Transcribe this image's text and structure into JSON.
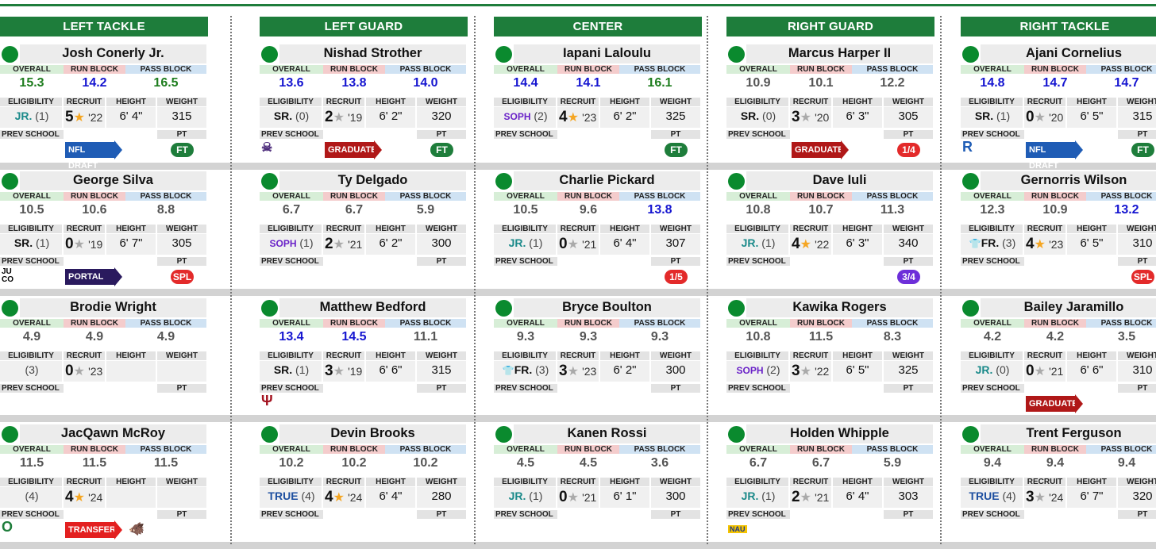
{
  "labels": {
    "overall": "OVERALL",
    "run_block": "RUN BLOCK",
    "pass_block": "PASS BLOCK",
    "eligibility": "ELIGIBILITY",
    "recruit": "RECRUIT",
    "height": "HEIGHT",
    "weight": "WEIGHT",
    "prev_school": "PREV SCHOOL",
    "pt": "PT"
  },
  "colors": {
    "header_green": "#1e7d3b",
    "stat_green": "#1e7d1e",
    "stat_blue": "#1515d0",
    "stat_gray": "#555555"
  },
  "columns": [
    {
      "position": "LEFT TACKLE",
      "players": [
        {
          "name": "Josh Conerly Jr.",
          "overall": "15.3",
          "run_block": "14.2",
          "pass_block": "16.5",
          "colors": [
            "green",
            "blue",
            "green"
          ],
          "class": "JR.",
          "years": "(1)",
          "stars": "5",
          "star_color": "gold",
          "recruit_year": "'22",
          "height": "6' 4\"",
          "weight": "315",
          "prev_school": "",
          "status": "NFL DRAFT",
          "status_type": "draft",
          "pt": "FT",
          "pt_type": "ft"
        },
        {
          "name": "George Silva",
          "overall": "10.5",
          "run_block": "10.6",
          "pass_block": "8.8",
          "colors": [
            "gray",
            "gray",
            "gray"
          ],
          "class": "SR.",
          "years": "(1)",
          "stars": "0",
          "star_color": "gray",
          "recruit_year": "'19",
          "height": "6' 7\"",
          "weight": "305",
          "prev_school": "JU CO",
          "status": "PORTAL",
          "status_type": "portal",
          "pt": "SPL",
          "pt_type": "red"
        },
        {
          "name": "Brodie Wright",
          "overall": "4.9",
          "run_block": "4.9",
          "pass_block": "4.9",
          "colors": [
            "gray",
            "gray",
            "gray"
          ],
          "class": "",
          "years": "(3)",
          "stars": "0",
          "star_color": "gray",
          "recruit_year": "'23",
          "height": "",
          "weight": "",
          "prev_school": "",
          "status": "",
          "status_type": "",
          "pt": "",
          "pt_type": ""
        },
        {
          "name": "JacQawn McRoy",
          "overall": "11.5",
          "run_block": "11.5",
          "pass_block": "11.5",
          "colors": [
            "gray",
            "gray",
            "gray"
          ],
          "class": "",
          "years": "(4)",
          "stars": "4",
          "star_color": "gold",
          "recruit_year": "'24",
          "height": "",
          "weight": "",
          "prev_school": "O",
          "status": "TRANSFER",
          "status_type": "transfer",
          "pt": "",
          "pt_type": ""
        }
      ]
    },
    {
      "position": "LEFT GUARD",
      "players": [
        {
          "name": "Nishad Strother",
          "overall": "13.6",
          "run_block": "13.8",
          "pass_block": "14.0",
          "colors": [
            "blue",
            "blue",
            "blue"
          ],
          "class": "SR.",
          "years": "(0)",
          "stars": "2",
          "star_color": "gray",
          "recruit_year": "'19",
          "height": "6' 2\"",
          "weight": "320",
          "prev_school": "☠",
          "status": "GRADUATE",
          "status_type": "grad",
          "pt": "FT",
          "pt_type": "ft"
        },
        {
          "name": "Ty Delgado",
          "overall": "6.7",
          "run_block": "6.7",
          "pass_block": "5.9",
          "colors": [
            "gray",
            "gray",
            "gray"
          ],
          "class": "SOPH",
          "years": "(1)",
          "stars": "2",
          "star_color": "gray",
          "recruit_year": "'21",
          "height": "6' 2\"",
          "weight": "300",
          "prev_school": "",
          "status": "",
          "status_type": "",
          "pt": "",
          "pt_type": ""
        },
        {
          "name": "Matthew Bedford",
          "overall": "13.4",
          "run_block": "14.5",
          "pass_block": "11.1",
          "colors": [
            "blue",
            "blue",
            "gray"
          ],
          "class": "SR.",
          "years": "(1)",
          "stars": "3",
          "star_color": "gray",
          "recruit_year": "'19",
          "height": "6' 6\"",
          "weight": "315",
          "prev_school": "Ψ",
          "status": "",
          "status_type": "",
          "pt": "",
          "pt_type": ""
        },
        {
          "name": "Devin Brooks",
          "overall": "10.2",
          "run_block": "10.2",
          "pass_block": "10.2",
          "colors": [
            "gray",
            "gray",
            "gray"
          ],
          "class": "TRUE",
          "years": "(4)",
          "stars": "4",
          "star_color": "gold",
          "recruit_year": "'24",
          "height": "6' 4\"",
          "weight": "280",
          "prev_school": "",
          "status": "",
          "status_type": "",
          "pt": "",
          "pt_type": ""
        }
      ]
    },
    {
      "position": "CENTER",
      "players": [
        {
          "name": "Iapani Laloulu",
          "overall": "14.4",
          "run_block": "14.1",
          "pass_block": "16.1",
          "colors": [
            "blue",
            "blue",
            "green"
          ],
          "class": "SOPH",
          "years": "(2)",
          "stars": "4",
          "star_color": "gold",
          "recruit_year": "'23",
          "height": "6' 2\"",
          "weight": "325",
          "prev_school": "",
          "status": "",
          "status_type": "",
          "pt": "FT",
          "pt_type": "ft"
        },
        {
          "name": "Charlie Pickard",
          "overall": "10.5",
          "run_block": "9.6",
          "pass_block": "13.8",
          "colors": [
            "gray",
            "gray",
            "blue"
          ],
          "class": "JR.",
          "years": "(1)",
          "stars": "0",
          "star_color": "gray",
          "recruit_year": "'21",
          "height": "6' 4\"",
          "weight": "307",
          "prev_school": "",
          "status": "",
          "status_type": "",
          "pt": "1/5",
          "pt_type": "red"
        },
        {
          "name": "Bryce Boulton",
          "overall": "9.3",
          "run_block": "9.3",
          "pass_block": "9.3",
          "colors": [
            "gray",
            "gray",
            "gray"
          ],
          "class": "FR.",
          "redshirt": true,
          "years": "(3)",
          "stars": "3",
          "star_color": "gray",
          "recruit_year": "'23",
          "height": "6' 2\"",
          "weight": "300",
          "prev_school": "",
          "status": "",
          "status_type": "",
          "pt": "",
          "pt_type": ""
        },
        {
          "name": "Kanen Rossi",
          "overall": "4.5",
          "run_block": "4.5",
          "pass_block": "3.6",
          "colors": [
            "gray",
            "gray",
            "gray"
          ],
          "class": "JR.",
          "years": "(1)",
          "stars": "0",
          "star_color": "gray",
          "recruit_year": "'21",
          "height": "6' 1\"",
          "weight": "300",
          "prev_school": "",
          "status": "",
          "status_type": "",
          "pt": "",
          "pt_type": ""
        }
      ]
    },
    {
      "position": "RIGHT GUARD",
      "players": [
        {
          "name": "Marcus Harper II",
          "overall": "10.9",
          "run_block": "10.1",
          "pass_block": "12.2",
          "colors": [
            "gray",
            "gray",
            "gray"
          ],
          "class": "SR.",
          "years": "(0)",
          "stars": "3",
          "star_color": "gray",
          "recruit_year": "'20",
          "height": "6' 3\"",
          "weight": "305",
          "prev_school": "",
          "status": "GRADUATE",
          "status_type": "grad",
          "pt": "1/4",
          "pt_type": "red"
        },
        {
          "name": "Dave Iuli",
          "overall": "10.8",
          "run_block": "10.7",
          "pass_block": "11.3",
          "colors": [
            "gray",
            "gray",
            "gray"
          ],
          "class": "JR.",
          "years": "(1)",
          "stars": "4",
          "star_color": "gold",
          "recruit_year": "'22",
          "height": "6' 3\"",
          "weight": "340",
          "prev_school": "",
          "status": "",
          "status_type": "",
          "pt": "3/4",
          "pt_type": "purple"
        },
        {
          "name": "Kawika Rogers",
          "overall": "10.8",
          "run_block": "11.5",
          "pass_block": "8.3",
          "colors": [
            "gray",
            "gray",
            "gray"
          ],
          "class": "SOPH",
          "years": "(2)",
          "stars": "3",
          "star_color": "gray",
          "recruit_year": "'22",
          "height": "6' 5\"",
          "weight": "325",
          "prev_school": "",
          "status": "",
          "status_type": "",
          "pt": "",
          "pt_type": ""
        },
        {
          "name": "Holden Whipple",
          "overall": "6.7",
          "run_block": "6.7",
          "pass_block": "5.9",
          "colors": [
            "gray",
            "gray",
            "gray"
          ],
          "class": "JR.",
          "years": "(1)",
          "stars": "2",
          "star_color": "gray",
          "recruit_year": "'21",
          "height": "6' 4\"",
          "weight": "303",
          "prev_school": "NAU",
          "status": "",
          "status_type": "",
          "pt": "",
          "pt_type": ""
        }
      ]
    },
    {
      "position": "RIGHT TACKLE",
      "players": [
        {
          "name": "Ajani Cornelius",
          "overall": "14.8",
          "run_block": "14.7",
          "pass_block": "14.7",
          "colors": [
            "blue",
            "blue",
            "blue"
          ],
          "class": "SR.",
          "years": "(1)",
          "stars": "0",
          "star_color": "gray",
          "recruit_year": "'20",
          "height": "6' 5\"",
          "weight": "315",
          "prev_school": "R",
          "status": "NFL DRAFT",
          "status_type": "draft",
          "pt": "FT",
          "pt_type": "ft"
        },
        {
          "name": "Gernorris Wilson",
          "overall": "12.3",
          "run_block": "10.9",
          "pass_block": "13.2",
          "colors": [
            "gray",
            "gray",
            "blue"
          ],
          "class": "FR.",
          "redshirt": true,
          "years": "(3)",
          "stars": "4",
          "star_color": "gold",
          "recruit_year": "'23",
          "height": "6' 5\"",
          "weight": "310",
          "prev_school": "",
          "status": "",
          "status_type": "",
          "pt": "SPL",
          "pt_type": "red"
        },
        {
          "name": "Bailey Jaramillo",
          "overall": "4.2",
          "run_block": "4.2",
          "pass_block": "3.5",
          "colors": [
            "gray",
            "gray",
            "gray"
          ],
          "class": "JR.",
          "years": "(0)",
          "stars": "0",
          "star_color": "gray",
          "recruit_year": "'21",
          "height": "6' 6\"",
          "weight": "310",
          "prev_school": "",
          "status": "GRADUATE",
          "status_type": "grad",
          "pt": "",
          "pt_type": ""
        },
        {
          "name": "Trent Ferguson",
          "overall": "9.4",
          "run_block": "9.4",
          "pass_block": "9.4",
          "colors": [
            "gray",
            "gray",
            "gray"
          ],
          "class": "TRUE",
          "years": "(4)",
          "stars": "3",
          "star_color": "gray",
          "recruit_year": "'24",
          "height": "6' 7\"",
          "weight": "320",
          "prev_school": "",
          "status": "",
          "status_type": "",
          "pt": "",
          "pt_type": ""
        }
      ]
    }
  ]
}
